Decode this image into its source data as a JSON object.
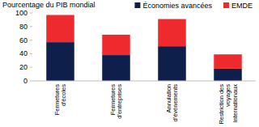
{
  "chart_data": {
    "type": "bar",
    "stacked": true,
    "y_label": "Pourcentage du PIB mondial",
    "categories": [
      "Fermetures d'écoles",
      "Fermetures d'entreprises",
      "Annulation d'événements",
      "Restriction des voyages internationaux"
    ],
    "series": [
      {
        "name": "Économies avancées",
        "color": "#0d1f4a",
        "values": [
          57,
          38,
          51,
          18
        ]
      },
      {
        "name": "EMDE",
        "color": "#ee2a2e",
        "values": [
          40,
          30,
          40,
          21
        ]
      }
    ],
    "ylim": [
      0,
      100
    ],
    "yticks": [
      0,
      20,
      40,
      60,
      80,
      100
    ],
    "grid": false,
    "legend": "top-right"
  }
}
